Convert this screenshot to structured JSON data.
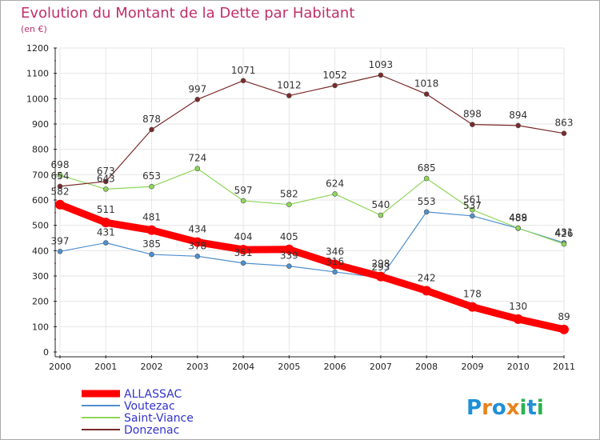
{
  "title": "Evolution du Montant de la Dette par Habitant",
  "subtitle": "(en €)",
  "brand": {
    "letters": [
      {
        "ch": "P",
        "color": "#1f8fd6"
      },
      {
        "ch": "r",
        "color": "#e8831d"
      },
      {
        "ch": "o",
        "color": "#1f8fd6"
      },
      {
        "ch": "x",
        "color": "#e8831d"
      },
      {
        "ch": "i",
        "color": "#2bb24c"
      },
      {
        "ch": "t",
        "color": "#1f8fd6"
      },
      {
        "ch": "i",
        "color": "#2bb24c"
      }
    ]
  },
  "colors": {
    "title": "#c0306a",
    "legend_text": "#3333cc",
    "axis": "#222222",
    "grid": "#e6e6e6",
    "border": "#aaaaaa"
  },
  "chart_data": {
    "type": "line",
    "title": "Evolution du Montant de la Dette par Habitant",
    "subtitle": "(en €)",
    "x": [
      "2000",
      "2001",
      "2002",
      "2003",
      "2004",
      "2005",
      "2006",
      "2007",
      "2008",
      "2009",
      "2010",
      "2011"
    ],
    "ylim": [
      0,
      1200
    ],
    "yticks": [
      0,
      100,
      200,
      300,
      400,
      500,
      600,
      700,
      800,
      900,
      1000,
      1100,
      1200
    ],
    "grid": true,
    "legend_position": "bottom-left",
    "series": [
      {
        "name": "ALLASSAC",
        "color": "#ff0000",
        "values": [
          582,
          511,
          481,
          434,
          404,
          405,
          346,
          298,
          242,
          178,
          130,
          89
        ]
      },
      {
        "name": "Voutezac",
        "color": "#4f8fce",
        "values": [
          397,
          431,
          385,
          378,
          351,
          339,
          316,
          293,
          553,
          537,
          488,
          431
        ]
      },
      {
        "name": "Saint-Viance",
        "color": "#8ed65a",
        "values": [
          698,
          643,
          653,
          724,
          597,
          582,
          624,
          540,
          685,
          561,
          489,
          426
        ]
      },
      {
        "name": "Donzenac",
        "color": "#7a2a2a",
        "values": [
          654,
          673,
          878,
          997,
          1071,
          1012,
          1052,
          1093,
          1018,
          898,
          894,
          863
        ]
      }
    ]
  }
}
